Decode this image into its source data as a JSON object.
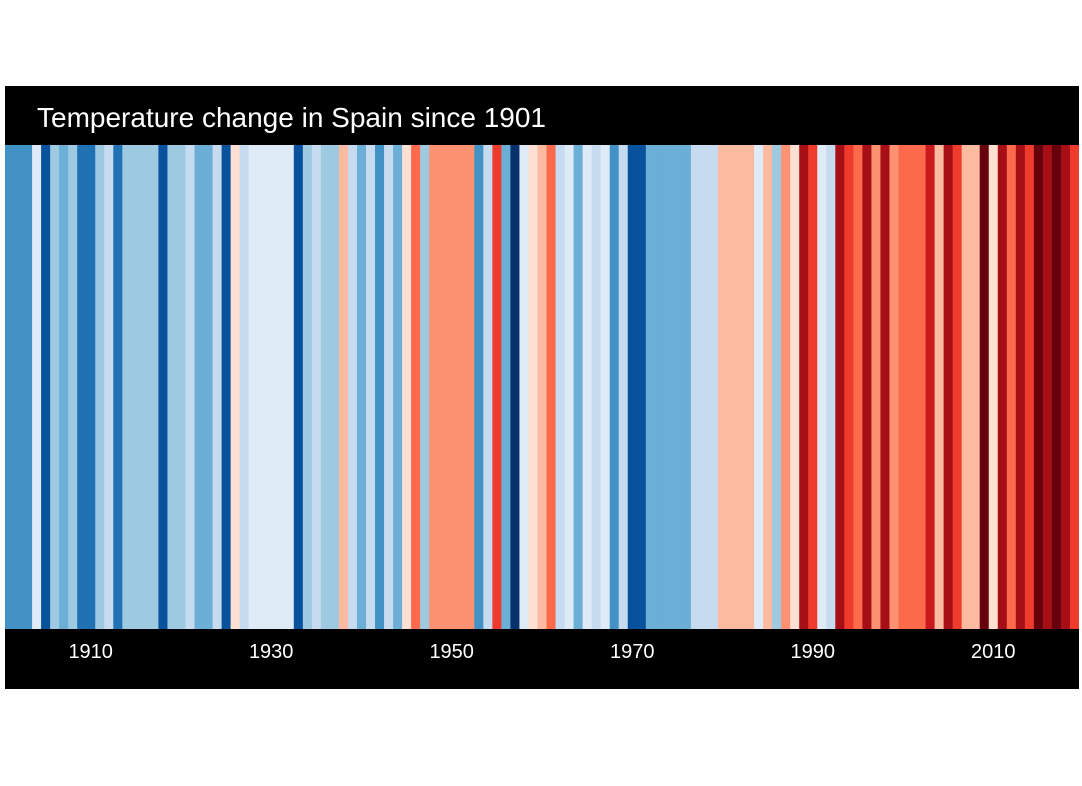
{
  "chart_data": {
    "type": "heatmap",
    "title": "Temperature change in Spain since 1901",
    "xlabel": "",
    "ylabel": "",
    "x_range": [
      1901,
      2019
    ],
    "x_ticks": [
      "1910",
      "1930",
      "1950",
      "1970",
      "1990",
      "2010"
    ],
    "legend": "none",
    "grid": false,
    "colors": {
      "frame_background": "#000000",
      "text": "#ffffff",
      "palette": [
        "#08306b",
        "#08519c",
        "#2171b5",
        "#4292c6",
        "#6baed6",
        "#9ecae1",
        "#c6dbef",
        "#deebf7",
        "#fee0d2",
        "#fcbba1",
        "#fc9272",
        "#fb6a4a",
        "#ef3b2c",
        "#cb181d",
        "#a50f15",
        "#67000d"
      ]
    },
    "series": [
      {
        "years": [
          1901,
          1902,
          1903,
          1904,
          1905,
          1906,
          1907,
          1908,
          1909,
          1910,
          1911,
          1912,
          1913,
          1914,
          1915,
          1916,
          1917,
          1918,
          1919,
          1920,
          1921,
          1922,
          1923,
          1924,
          1925,
          1926,
          1927,
          1928,
          1929,
          1930,
          1931,
          1932,
          1933,
          1934,
          1935,
          1936,
          1937,
          1938,
          1939,
          1940,
          1941,
          1942,
          1943,
          1944,
          1945,
          1946,
          1947,
          1948,
          1949,
          1950,
          1951,
          1952,
          1953,
          1954,
          1955,
          1956,
          1957,
          1958,
          1959,
          1960,
          1961,
          1962,
          1963,
          1964,
          1965,
          1966,
          1967,
          1968,
          1969,
          1970,
          1971,
          1972,
          1973,
          1974,
          1975,
          1976,
          1977,
          1978,
          1979,
          1980,
          1981,
          1982,
          1983,
          1984,
          1985,
          1986,
          1987,
          1988,
          1989,
          1990,
          1991,
          1992,
          1993,
          1994,
          1995,
          1996,
          1997,
          1998,
          1999,
          2000,
          2001,
          2002,
          2003,
          2004,
          2005,
          2006,
          2007,
          2008,
          2009,
          2010,
          2011,
          2012,
          2013,
          2014,
          2015,
          2016,
          2017,
          2018,
          2019
        ],
        "color_index": [
          3,
          3,
          3,
          7,
          1,
          5,
          4,
          5,
          2,
          2,
          5,
          6,
          2,
          5,
          5,
          5,
          5,
          1,
          5,
          5,
          6,
          4,
          4,
          6,
          1,
          8,
          6,
          7,
          7,
          7,
          7,
          7,
          1,
          5,
          6,
          5,
          5,
          9,
          6,
          4,
          6,
          3,
          6,
          4,
          8,
          11,
          5,
          10,
          10,
          10,
          10,
          10,
          3,
          6,
          12,
          4,
          0,
          7,
          8,
          9,
          11,
          6,
          7,
          4,
          7,
          6,
          7,
          3,
          6,
          1,
          1,
          4,
          4,
          4,
          4,
          4,
          6,
          6,
          6,
          9,
          9,
          9,
          9,
          7,
          9,
          5,
          10,
          8,
          14,
          12,
          7,
          6,
          14,
          12,
          11,
          14,
          10,
          14,
          10,
          11,
          11,
          11,
          13,
          9,
          14,
          12,
          9,
          9,
          15,
          8,
          14,
          11,
          14,
          12,
          15,
          14,
          15,
          14,
          12
        ]
      }
    ]
  }
}
